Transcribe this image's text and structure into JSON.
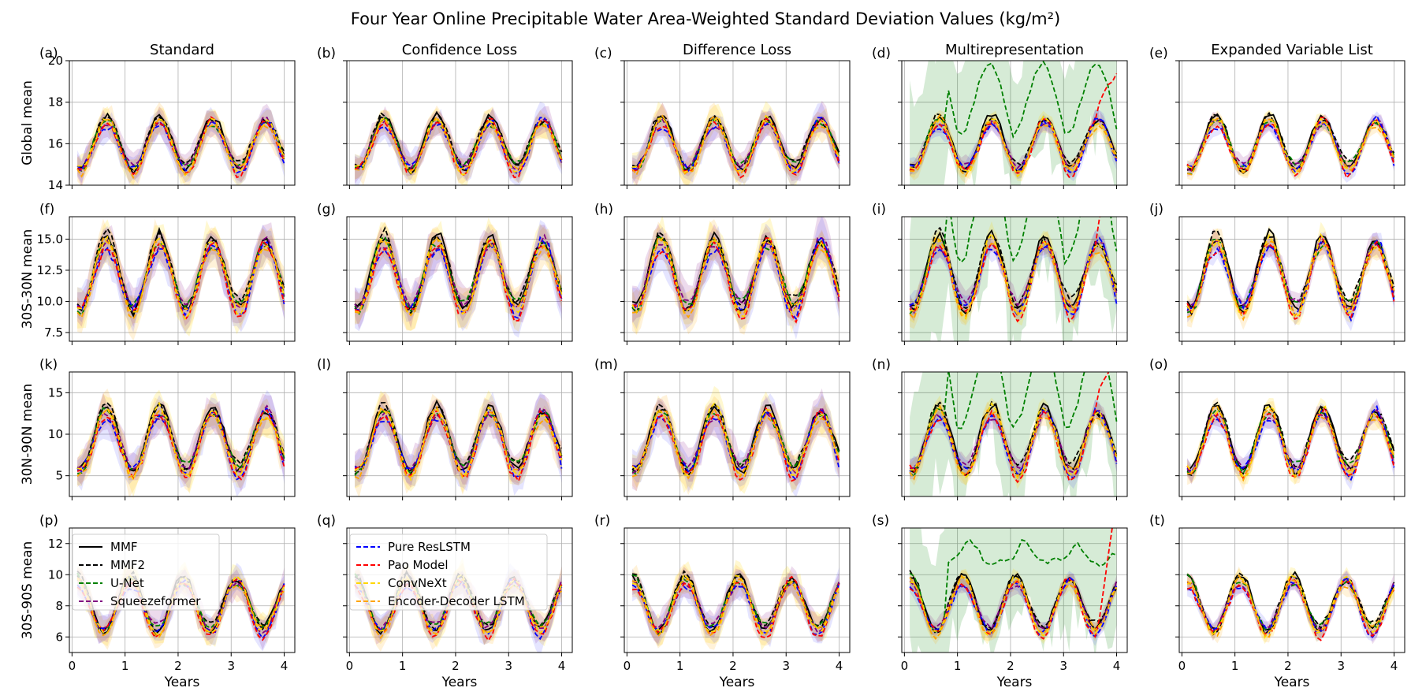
{
  "figure": {
    "title": "Four Year Online Precipitable Water Area-Weighted Standard Deviation Values (kg/m²)"
  },
  "chart_data": {
    "type": "line",
    "title": "Four Year Online Precipitable Water Area-Weighted Standard Deviation Values (kg/m²)",
    "xlabel": "Years",
    "xlim": [
      -0.05,
      4.2
    ],
    "xticks": [
      0,
      1,
      2,
      3,
      4
    ],
    "columns": [
      "Standard",
      "Confidence Loss",
      "Difference Loss",
      "Multirepresentation",
      "Expanded Variable List"
    ],
    "rows": [
      {
        "ylabel": "Global mean",
        "ylim": [
          14,
          20
        ],
        "yticks": [
          14,
          16,
          18,
          20
        ],
        "base": 16.0,
        "amp": 1.3,
        "phase": 0.65
      },
      {
        "ylabel": "30S-30N mean",
        "ylim": [
          6.8,
          16.8
        ],
        "yticks": [
          7.5,
          10.0,
          12.5,
          15.0
        ],
        "base": 12.2,
        "amp": 3.0,
        "phase": 0.65
      },
      {
        "ylabel": "30N-90N mean",
        "ylim": [
          2.5,
          17.5
        ],
        "yticks": [
          5,
          10,
          15
        ],
        "base": 9.3,
        "amp": 4.0,
        "phase": 0.65
      },
      {
        "ylabel": "30S-90S mean",
        "ylim": [
          5.0,
          13.0
        ],
        "yticks": [
          6,
          8,
          10,
          12
        ],
        "base": 8.1,
        "amp": 1.8,
        "phase": 0.1
      }
    ],
    "panel_labels": [
      "(a)",
      "(b)",
      "(c)",
      "(d)",
      "(e)",
      "(f)",
      "(g)",
      "(h)",
      "(i)",
      "(j)",
      "(k)",
      "(l)",
      "(m)",
      "(n)",
      "(o)",
      "(p)",
      "(q)",
      "(r)",
      "(s)",
      "(t)"
    ],
    "series": [
      {
        "name": "MMF",
        "color": "#000000",
        "dash": "solid",
        "offset": 0.05
      },
      {
        "name": "MMF2",
        "color": "#000000",
        "dash": "dashed",
        "offset": 0.12
      },
      {
        "name": "U-Net",
        "color": "#008000",
        "dash": "dashed",
        "offset": 0.0
      },
      {
        "name": "Squeezeformer",
        "color": "#800080",
        "dash": "dashed",
        "offset": -0.05
      },
      {
        "name": "Pure ResLSTM",
        "color": "#0000ff",
        "dash": "dashed",
        "offset": -0.2
      },
      {
        "name": "Pao Model",
        "color": "#ff0000",
        "dash": "dashed",
        "offset": -0.25
      },
      {
        "name": "ConvNeXt",
        "color": "#ffd700",
        "dash": "dashed",
        "offset": -0.1
      },
      {
        "name": "Encoder-Decoder LSTM",
        "color": "#ffa500",
        "dash": "dashed",
        "offset": -0.15
      }
    ],
    "legend": {
      "left": [
        0,
        1,
        2,
        3
      ],
      "right": [
        4,
        5,
        6,
        7
      ]
    }
  }
}
